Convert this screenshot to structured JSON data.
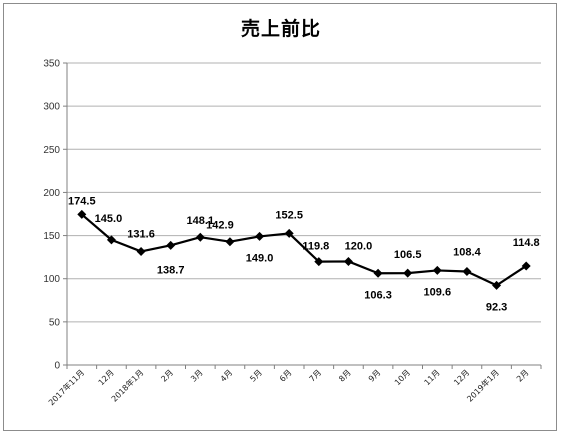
{
  "chart_data": {
    "type": "line",
    "title": "売上前比",
    "xlabel": "",
    "ylabel": "",
    "ylim": [
      0,
      350
    ],
    "yticks": [
      0,
      50,
      100,
      150,
      200,
      250,
      300,
      350
    ],
    "grid": true,
    "legend": "none",
    "line_color": "#000000",
    "marker": "diamond",
    "categories": [
      "2017年11月",
      "12月",
      "2018年1月",
      "2月",
      "3月",
      "4月",
      "5月",
      "6月",
      "7月",
      "8月",
      "9月",
      "10月",
      "11月",
      "12月",
      "2019年1月",
      "2月"
    ],
    "values": [
      174.5,
      145.0,
      131.6,
      138.7,
      148.1,
      142.9,
      149.0,
      152.5,
      119.8,
      120.0,
      106.3,
      106.5,
      109.6,
      108.4,
      92.3,
      114.8
    ],
    "data_labels": [
      "174.5",
      "145.0",
      "131.6",
      "138.7",
      "148.1",
      "142.9",
      "149.0",
      "152.5",
      "119.8",
      "120.0",
      "106.3",
      "106.5",
      "109.6",
      "108.4",
      "92.3",
      "114.8"
    ]
  }
}
